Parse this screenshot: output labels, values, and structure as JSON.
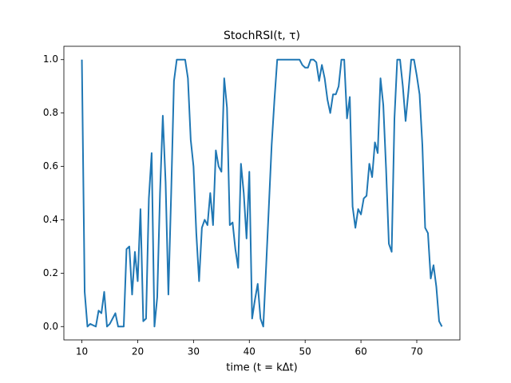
{
  "chart_data": {
    "type": "line",
    "title": "StochRSI(t, τ)",
    "x_label": "time (t = kΔt)",
    "x": [
      10,
      10.5,
      11,
      11.5,
      12,
      12.5,
      13,
      13.5,
      14,
      14.5,
      15,
      15.5,
      16,
      16.5,
      17,
      17.5,
      18,
      18.5,
      19,
      19.5,
      20,
      20.5,
      21,
      21.5,
      22,
      22.5,
      23,
      23.5,
      24,
      24.5,
      25,
      25.5,
      26,
      26.5,
      27,
      27.5,
      28,
      28.5,
      29,
      29.5,
      30,
      30.5,
      31,
      31.5,
      32,
      32.5,
      33,
      33.5,
      34,
      34.5,
      35,
      35.5,
      36,
      36.5,
      37,
      37.5,
      38,
      38.5,
      39,
      39.5,
      40,
      40.5,
      41,
      41.5,
      42,
      42.5,
      43,
      43.5,
      44,
      44.5,
      45,
      45.5,
      46,
      46.5,
      47,
      47.5,
      48,
      48.5,
      49,
      49.5,
      50,
      50.5,
      51,
      51.5,
      52,
      52.5,
      53,
      53.5,
      54,
      54.5,
      55,
      55.5,
      56,
      56.5,
      57,
      57.5,
      58,
      58.5,
      59,
      59.5,
      60,
      60.5,
      61,
      61.5,
      62,
      62.5,
      63,
      63.5,
      64,
      64.5,
      65,
      65.5,
      66,
      66.5,
      67,
      67.5,
      68,
      68.5,
      69,
      69.5,
      70,
      70.5,
      71,
      71.5,
      72,
      72.5,
      73,
      73.5,
      74,
      74.5
    ],
    "series": [
      {
        "color": "#1f77b4",
        "values": [
          1.0,
          0.13,
          0.0,
          0.01,
          0.005,
          0.0,
          0.06,
          0.05,
          0.13,
          0.0,
          0.01,
          0.03,
          0.05,
          0.0,
          0.0,
          0.0,
          0.29,
          0.3,
          0.12,
          0.28,
          0.17,
          0.44,
          0.02,
          0.03,
          0.48,
          0.65,
          0.0,
          0.11,
          0.5,
          0.79,
          0.54,
          0.12,
          0.5,
          0.92,
          1.0,
          1.0,
          1.0,
          1.0,
          0.93,
          0.7,
          0.6,
          0.35,
          0.17,
          0.37,
          0.4,
          0.38,
          0.5,
          0.38,
          0.66,
          0.6,
          0.58,
          0.93,
          0.82,
          0.38,
          0.39,
          0.29,
          0.22,
          0.61,
          0.5,
          0.33,
          0.58,
          0.03,
          0.1,
          0.16,
          0.03,
          0.0,
          0.22,
          0.45,
          0.68,
          0.85,
          1,
          1,
          1,
          1,
          1,
          1,
          1,
          1,
          1,
          0.98,
          0.97,
          0.97,
          1.0,
          1.0,
          0.99,
          0.92,
          0.98,
          0.93,
          0.85,
          0.8,
          0.87,
          0.87,
          0.9,
          1.0,
          1.0,
          0.78,
          0.86,
          0.45,
          0.37,
          0.44,
          0.42,
          0.48,
          0.49,
          0.61,
          0.56,
          0.69,
          0.65,
          0.93,
          0.83,
          0.59,
          0.31,
          0.28,
          0.78,
          1.0,
          1.0,
          0.9,
          0.77,
          0.88,
          1.0,
          1.0,
          0.94,
          0.87,
          0.68,
          0.37,
          0.35,
          0.18,
          0.23,
          0.15,
          0.02,
          0.0
        ]
      }
    ],
    "xlim": [
      6.775,
      77.725
    ],
    "ylim": [
      -0.05,
      1.05
    ],
    "xticks": [
      10,
      20,
      30,
      40,
      50,
      60,
      70
    ],
    "yticks": [
      {
        "value": 0,
        "label": "0.0"
      },
      0.2,
      0.4,
      0.6,
      0.8,
      {
        "value": 1,
        "label": "1.0"
      }
    ]
  }
}
